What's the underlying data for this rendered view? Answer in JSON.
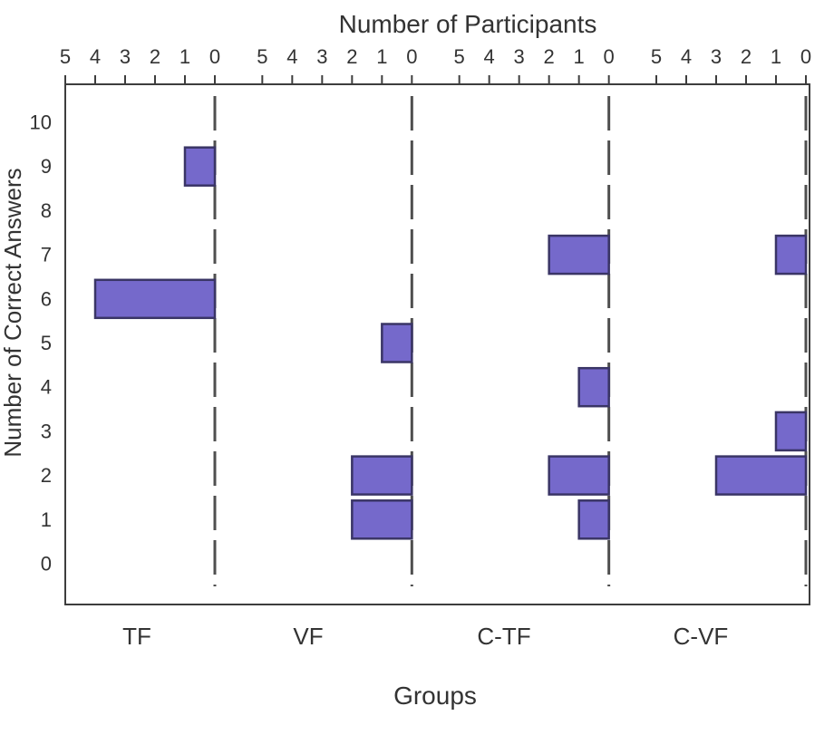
{
  "chart_data": {
    "type": "bar",
    "orientation": "horizontal-left",
    "title": "Number of Participants",
    "xlabel": "Groups",
    "ylabel": "Number of Correct Answers",
    "participants_axis": {
      "position": "top",
      "ticks_per_group": [
        5,
        4,
        3,
        2,
        1,
        0
      ],
      "min": 0,
      "max": 5,
      "direction": "bars-extend-left-from-zero"
    },
    "answers_axis": {
      "position": "left",
      "ticks": [
        10,
        9,
        8,
        7,
        6,
        5,
        4,
        3,
        2,
        1,
        0
      ],
      "range": [
        0,
        10
      ]
    },
    "groups": [
      {
        "name": "TF",
        "bars": [
          {
            "correct_answers": 9,
            "participants": 1
          },
          {
            "correct_answers": 6,
            "participants": 4
          }
        ]
      },
      {
        "name": "VF",
        "bars": [
          {
            "correct_answers": 5,
            "participants": 1
          },
          {
            "correct_answers": 2,
            "participants": 2
          },
          {
            "correct_answers": 1,
            "participants": 2
          }
        ]
      },
      {
        "name": "C-TF",
        "bars": [
          {
            "correct_answers": 7,
            "participants": 2
          },
          {
            "correct_answers": 4,
            "participants": 1
          },
          {
            "correct_answers": 2,
            "participants": 2
          },
          {
            "correct_answers": 1,
            "participants": 1
          }
        ]
      },
      {
        "name": "C-VF",
        "bars": [
          {
            "correct_answers": 7,
            "participants": 1
          },
          {
            "correct_answers": 3,
            "participants": 1
          },
          {
            "correct_answers": 2,
            "participants": 3
          }
        ]
      }
    ],
    "zero_line_style": "dashed",
    "grid": false,
    "legend": false,
    "colors": {
      "bar_fill": "#7569CB",
      "bar_stroke": "#3A3566",
      "axis_line": "#3D3D3D",
      "dashed_line": "#4F4F4F",
      "text": "#333333",
      "background": "#FFFFFF"
    }
  }
}
